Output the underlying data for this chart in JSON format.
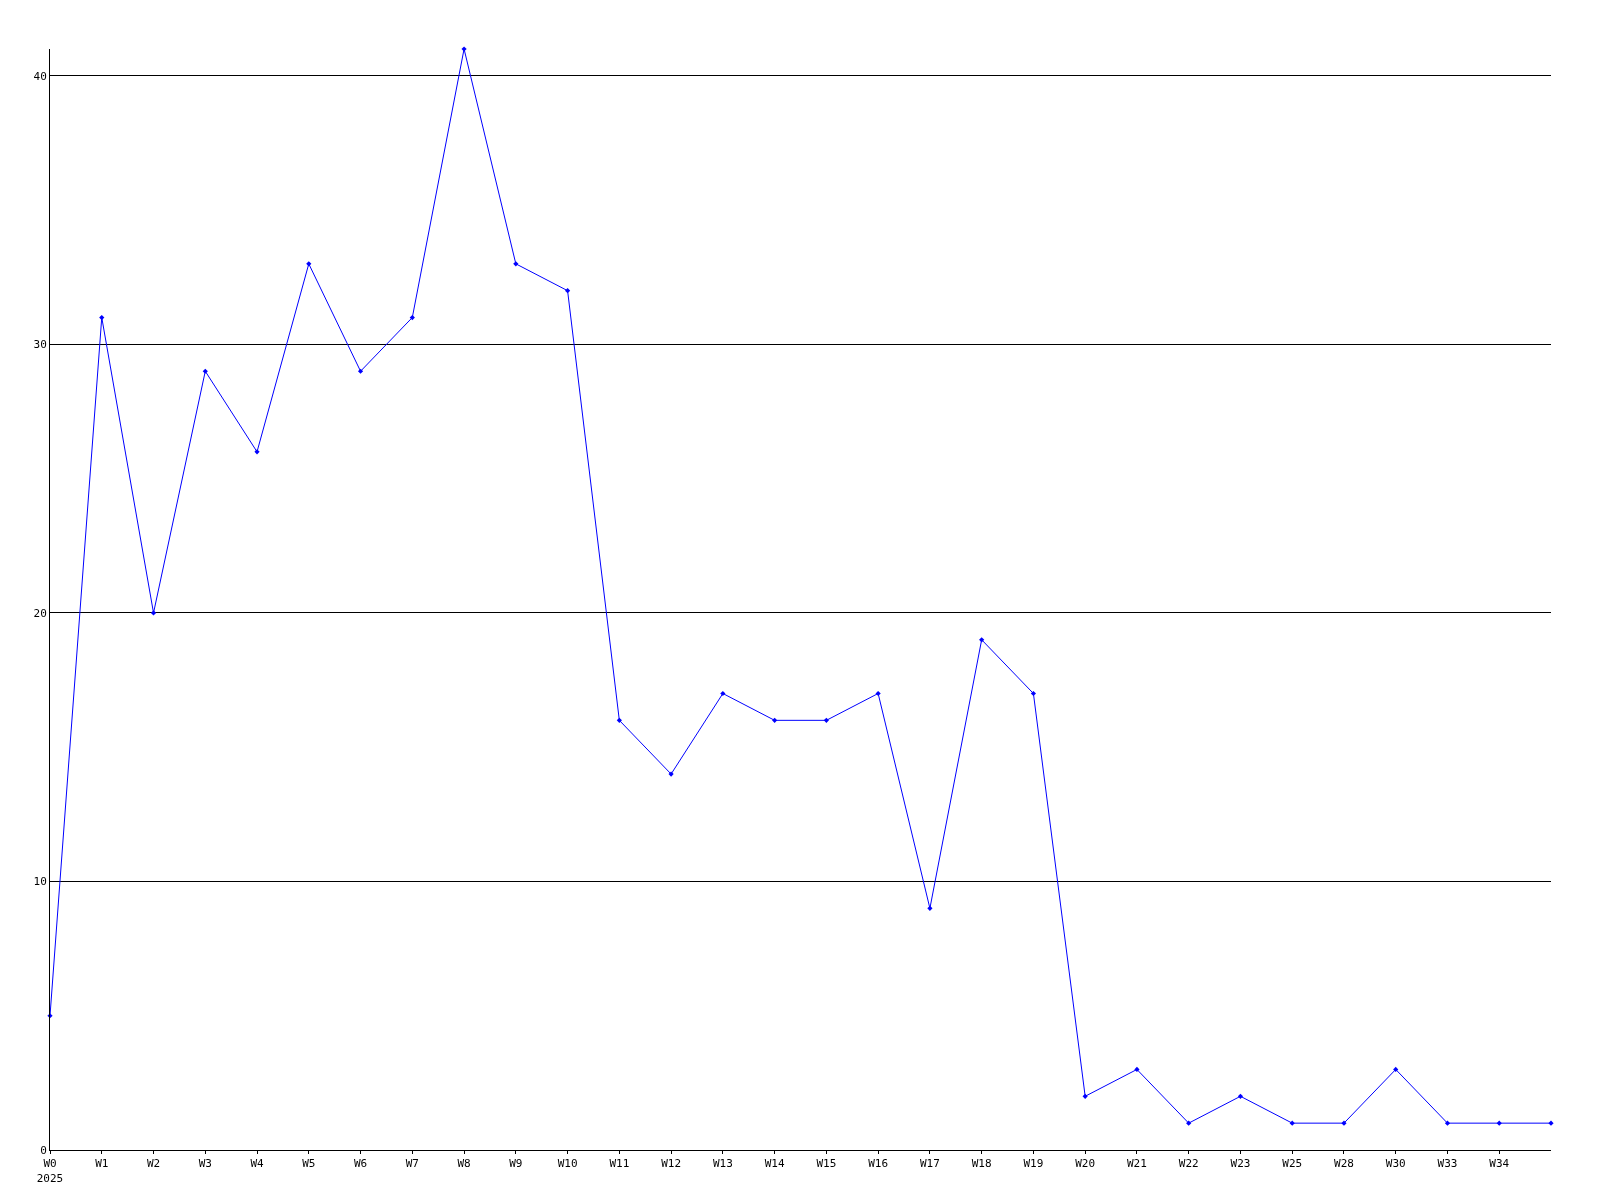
{
  "chart_data": {
    "type": "line",
    "categories": [
      "W0\n2025",
      "W1",
      "W2",
      "W3",
      "W4",
      "W5",
      "W6",
      "W7",
      "W8",
      "W9",
      "W10",
      "W11",
      "W12",
      "W13",
      "W14",
      "W15",
      "W16",
      "W17",
      "W18",
      "W19",
      "W20",
      "W21",
      "W22",
      "W23",
      "W25",
      "W28",
      "W30",
      "W33",
      "W34",
      null
    ],
    "series": [
      {
        "color": "#0000ff",
        "values": [
          5,
          31,
          20,
          29,
          26,
          33,
          29,
          31,
          41,
          33,
          32,
          16,
          14,
          17,
          16,
          16,
          17,
          9,
          19,
          17,
          2,
          3,
          1,
          2,
          1,
          1,
          3,
          1,
          1,
          1
        ]
      }
    ],
    "ylim": [
      0,
      41
    ],
    "yticks": [
      0,
      10,
      20,
      30,
      40
    ],
    "grid": "y",
    "marker": "diamond",
    "line_style": "solid",
    "legend": false
  }
}
